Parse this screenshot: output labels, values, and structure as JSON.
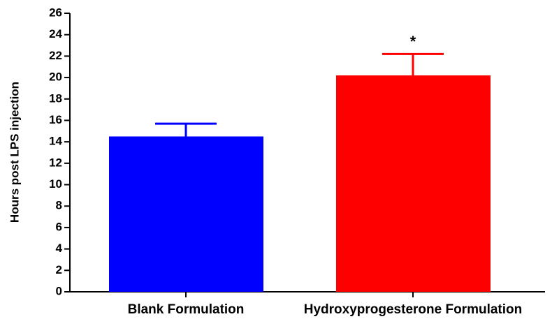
{
  "chart_data": {
    "type": "bar",
    "y_label": "Hours post LPS injection",
    "categories": [
      "Blank Formulation",
      "Hydroxyprogesterone Formulation"
    ],
    "values": [
      14.5,
      20.2
    ],
    "errors": [
      1.2,
      2.0
    ],
    "colors": [
      "#0000ff",
      "#ff0000"
    ],
    "significance_labels": [
      null,
      "*"
    ],
    "ylim": [
      0,
      26
    ],
    "yticks": [
      0,
      2,
      4,
      6,
      8,
      10,
      12,
      14,
      16,
      18,
      20,
      22,
      24,
      26
    ]
  }
}
